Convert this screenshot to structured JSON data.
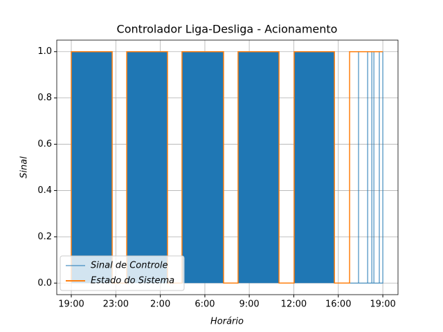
{
  "chart_data": {
    "type": "line",
    "title": "Controlador Liga-Desliga - Acionamento",
    "x_label": "Horário",
    "y_label": "Sinal",
    "xlim": [
      -1.12,
      25.17
    ],
    "ylim": [
      -0.05,
      1.05
    ],
    "xticks": [
      {
        "value": 0,
        "label": "19:00"
      },
      {
        "value": 3.43,
        "label": "23:00"
      },
      {
        "value": 6.86,
        "label": "2:00"
      },
      {
        "value": 10.29,
        "label": "6:00"
      },
      {
        "value": 13.71,
        "label": "9:00"
      },
      {
        "value": 17.14,
        "label": "12:00"
      },
      {
        "value": 20.57,
        "label": "16:00"
      },
      {
        "value": 24,
        "label": "19:00"
      }
    ],
    "yticks": [
      {
        "value": 0,
        "label": "0.0"
      },
      {
        "value": 0.2,
        "label": "0.2"
      },
      {
        "value": 0.4,
        "label": "0.4"
      },
      {
        "value": 0.6,
        "label": "0.6"
      },
      {
        "value": 0.8,
        "label": "0.8"
      },
      {
        "value": 1,
        "label": "1.0"
      }
    ],
    "grid": true,
    "legend": "lower left",
    "series": [
      {
        "name": "Sinal de Controle",
        "color": "#1f77b4",
        "fill": true,
        "x": [
          0,
          0,
          3.15,
          3.15,
          4.27,
          4.27,
          7.41,
          7.41,
          8.53,
          8.53,
          11.73,
          11.73,
          12.85,
          12.85,
          16,
          16,
          17.17,
          17.17,
          20.27,
          20.27,
          22.13,
          22.13,
          22.13,
          22.83,
          22.83,
          22.83,
          23.15,
          23.15,
          23.15,
          23.31,
          23.31,
          23.31,
          23.73,
          23.73,
          23.73,
          24,
          24
        ],
        "values": [
          0,
          1,
          1,
          0,
          0,
          1,
          1,
          0,
          0,
          1,
          1,
          0,
          0,
          1,
          1,
          0,
          0,
          1,
          1,
          0,
          0,
          1,
          0,
          0,
          1,
          0,
          0,
          1,
          0,
          0,
          1,
          0,
          0,
          1,
          0,
          0,
          1
        ]
      },
      {
        "name": "Estado do Sistema",
        "color": "#ff7f0e",
        "fill": false,
        "x": [
          0,
          0,
          3.15,
          3.15,
          4.27,
          4.27,
          7.41,
          7.41,
          8.53,
          8.53,
          11.73,
          11.73,
          12.85,
          12.85,
          16,
          16,
          17.17,
          17.17,
          20.27,
          20.27,
          21.44,
          21.44,
          24
        ],
        "values": [
          0,
          1,
          1,
          0,
          0,
          1,
          1,
          0,
          0,
          1,
          1,
          0,
          0,
          1,
          1,
          0,
          0,
          1,
          1,
          0,
          0,
          1,
          1
        ]
      }
    ]
  }
}
